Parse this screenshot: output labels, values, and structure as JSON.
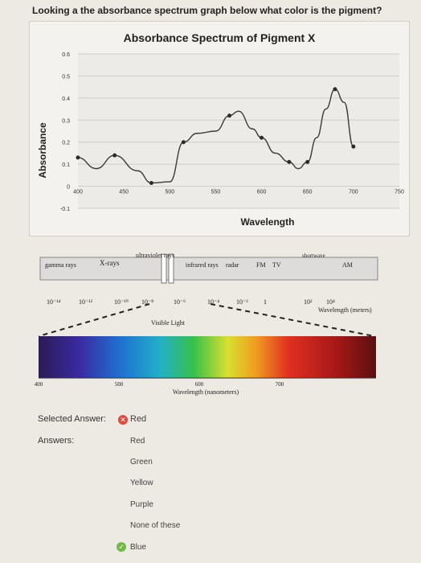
{
  "question": "Looking a the absorbance spectrum graph below what color is the pigment?",
  "chart_data": {
    "type": "line",
    "title": "Absorbance Spectrum of Pigment X",
    "xlabel": "Wavelength",
    "ylabel": "Absorbance",
    "x_ticks": [
      "400",
      "450",
      "500",
      "550",
      "600",
      "650",
      "700",
      "750"
    ],
    "y_ticks": [
      "0.6",
      "0.5",
      "0.4",
      "0.3",
      "0.2",
      "0.1",
      "0",
      "-0.1"
    ],
    "xlim": [
      400,
      750
    ],
    "ylim": [
      -0.1,
      0.6
    ],
    "series": [
      {
        "x": [
          400,
          420,
          440,
          465,
          480,
          500,
          515,
          530,
          550,
          565,
          575,
          590,
          600,
          615,
          630,
          640,
          650,
          660,
          670,
          680,
          690,
          700
        ],
        "y": [
          0.13,
          0.08,
          0.14,
          0.07,
          0.015,
          0.02,
          0.2,
          0.24,
          0.25,
          0.32,
          0.34,
          0.26,
          0.22,
          0.15,
          0.11,
          0.08,
          0.11,
          0.22,
          0.35,
          0.44,
          0.38,
          0.18
        ]
      }
    ]
  },
  "em_spectrum": {
    "bands": [
      "gamma rays",
      "X-rays",
      "ultraviolet rays",
      "infrared rays",
      "radar",
      "FM",
      "TV",
      "shortwave",
      "AM"
    ],
    "scale": [
      "10⁻¹⁴",
      "10⁻¹²",
      "10⁻¹⁰",
      "10⁻⁸",
      "10⁻⁶",
      "10⁻⁴",
      "10⁻²",
      "1",
      "10²",
      "10⁴"
    ],
    "scale_unit": "Wavelength (meters)",
    "visible_label": "Visible Light",
    "visible_ticks": [
      "400",
      "500",
      "600",
      "700"
    ],
    "visible_unit": "Wavelength (nanometers)"
  },
  "selected_answer": {
    "label": "Selected Answer:",
    "value": "Red",
    "status": "incorrect"
  },
  "answers": {
    "label": "Answers:",
    "options": [
      "Red",
      "Green",
      "Yellow",
      "Purple",
      "None of these",
      "Blue"
    ],
    "correct": "Blue"
  },
  "colors": {
    "line": "#3a3a3a",
    "point": "#2b2b2b",
    "incorrect": "#e0483c",
    "correct": "#6fbb45"
  }
}
